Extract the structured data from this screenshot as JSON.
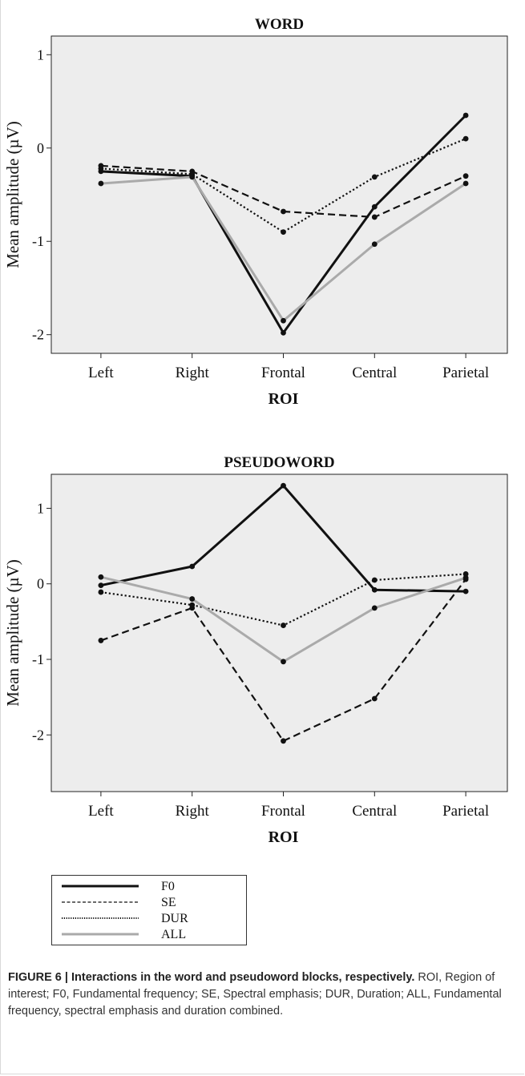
{
  "colors": {
    "background": "#ededed",
    "black": "#111111",
    "gray": "#aaaaaa"
  },
  "chart_data": [
    {
      "type": "line",
      "title": "WORD",
      "xlabel": "ROI",
      "ylabel": "Mean amplitude (µV)",
      "categories": [
        "Left",
        "Right",
        "Frontal",
        "Central",
        "Parietal"
      ],
      "ylim": [
        -2.2,
        1.2
      ],
      "yticks": [
        1,
        0,
        -1,
        -2
      ],
      "series": [
        {
          "name": "F0",
          "style": "solid",
          "color": "#111111",
          "values": [
            -0.25,
            -0.3,
            -1.98,
            -0.63,
            0.35
          ]
        },
        {
          "name": "SE",
          "style": "dashed",
          "color": "#111111",
          "values": [
            -0.19,
            -0.25,
            -0.68,
            -0.74,
            -0.3
          ]
        },
        {
          "name": "DUR",
          "style": "dotted",
          "color": "#111111",
          "values": [
            -0.22,
            -0.28,
            -0.9,
            -0.31,
            0.1
          ]
        },
        {
          "name": "ALL",
          "style": "solid",
          "color": "#aaaaaa",
          "values": [
            -0.38,
            -0.31,
            -1.85,
            -1.03,
            -0.38
          ]
        }
      ]
    },
    {
      "type": "line",
      "title": "PSEUDOWORD",
      "xlabel": "ROI",
      "ylabel": "Mean amplitude (µV)",
      "categories": [
        "Left",
        "Right",
        "Frontal",
        "Central",
        "Parietal"
      ],
      "ylim": [
        -2.75,
        1.45
      ],
      "yticks": [
        1,
        0,
        -1,
        -2
      ],
      "series": [
        {
          "name": "F0",
          "style": "solid",
          "color": "#111111",
          "values": [
            -0.02,
            0.23,
            1.3,
            -0.08,
            -0.1
          ]
        },
        {
          "name": "SE",
          "style": "dashed",
          "color": "#111111",
          "values": [
            -0.75,
            -0.32,
            -2.08,
            -1.52,
            0.06
          ]
        },
        {
          "name": "DUR",
          "style": "dotted",
          "color": "#111111",
          "values": [
            -0.11,
            -0.28,
            -0.55,
            0.05,
            0.13
          ]
        },
        {
          "name": "ALL",
          "style": "solid",
          "color": "#aaaaaa",
          "values": [
            0.09,
            -0.2,
            -1.03,
            -0.32,
            0.08
          ]
        }
      ]
    }
  ],
  "legend": [
    {
      "label": "F0",
      "style": "solid",
      "color": "#111111"
    },
    {
      "label": "SE",
      "style": "dashed",
      "color": "#111111"
    },
    {
      "label": "DUR",
      "style": "dotted",
      "color": "#111111"
    },
    {
      "label": "ALL",
      "style": "solid",
      "color": "#aaaaaa"
    }
  ],
  "caption": {
    "bold": "FIGURE 6 | Interactions in the word and pseudoword blocks, respectively.",
    "text": " ROI, Region of interest; F0, Fundamental frequency; SE, Spectral emphasis; DUR, Duration; ALL, Fundamental frequency, spectral emphasis and duration combined."
  }
}
